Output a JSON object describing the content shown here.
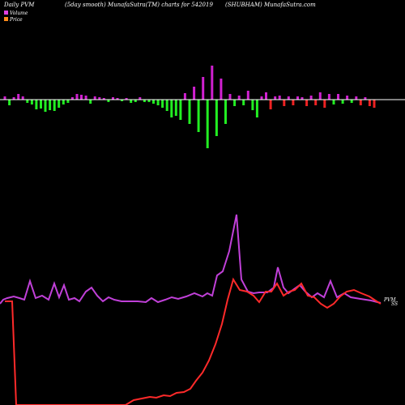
{
  "header": {
    "left": "Daily PVM",
    "center": "(5day smooth) MunafaSutra(TM) charts for 542019",
    "right": "(SHUBHAM) MunafaSutra.com"
  },
  "legend": {
    "volume_label": "Volume",
    "price_label": "Price",
    "volume_color": "#e040e0",
    "price_color": "#ff8c1a"
  },
  "end_labels": {
    "volume": "PVM",
    "price": "SS"
  },
  "colors": {
    "background": "#000000",
    "positive_bar": "#d020d0",
    "negative_bar": "#22ee22",
    "red_bar": "#ee2222",
    "volume_line": "#c040d8",
    "price_line": "#ff2a2a",
    "baseline": "#ffffff"
  },
  "chart_data": {
    "type": "bar+line",
    "bars": [
      {
        "v": 4,
        "c": "pos"
      },
      {
        "v": -7,
        "c": "neg"
      },
      {
        "v": 3,
        "c": "pos"
      },
      {
        "v": 7,
        "c": "pos"
      },
      {
        "v": 4,
        "c": "pos"
      },
      {
        "v": -4,
        "c": "neg"
      },
      {
        "v": -6,
        "c": "neg"
      },
      {
        "v": -12,
        "c": "neg"
      },
      {
        "v": -11,
        "c": "neg"
      },
      {
        "v": -15,
        "c": "neg"
      },
      {
        "v": -13,
        "c": "neg"
      },
      {
        "v": -14,
        "c": "neg"
      },
      {
        "v": -10,
        "c": "neg"
      },
      {
        "v": -6,
        "c": "neg"
      },
      {
        "v": -4,
        "c": "neg"
      },
      {
        "v": 3,
        "c": "pos"
      },
      {
        "v": 7,
        "c": "pos"
      },
      {
        "v": 6,
        "c": "pos"
      },
      {
        "v": 5,
        "c": "pos"
      },
      {
        "v": -5,
        "c": "neg"
      },
      {
        "v": 4,
        "c": "pos"
      },
      {
        "v": 3,
        "c": "pos"
      },
      {
        "v": 2,
        "c": "pos"
      },
      {
        "v": -3,
        "c": "neg"
      },
      {
        "v": 3,
        "c": "pos"
      },
      {
        "v": 2,
        "c": "pos"
      },
      {
        "v": -2,
        "c": "neg"
      },
      {
        "v": 2,
        "c": "pos"
      },
      {
        "v": -4,
        "c": "neg"
      },
      {
        "v": -3,
        "c": "neg"
      },
      {
        "v": 3,
        "c": "pos"
      },
      {
        "v": -3,
        "c": "neg"
      },
      {
        "v": -3,
        "c": "neg"
      },
      {
        "v": -5,
        "c": "neg"
      },
      {
        "v": -7,
        "c": "neg"
      },
      {
        "v": -10,
        "c": "neg"
      },
      {
        "v": -14,
        "c": "neg"
      },
      {
        "v": -22,
        "c": "neg"
      },
      {
        "v": -20,
        "c": "neg"
      },
      {
        "v": -25,
        "c": "neg"
      },
      {
        "v": 8,
        "c": "pos"
      },
      {
        "v": -30,
        "c": "neg"
      },
      {
        "v": 16,
        "c": "pos"
      },
      {
        "v": -40,
        "c": "neg"
      },
      {
        "v": 28,
        "c": "pos"
      },
      {
        "v": -60,
        "c": "neg"
      },
      {
        "v": 42,
        "c": "pos"
      },
      {
        "v": -45,
        "c": "neg"
      },
      {
        "v": 26,
        "c": "pos"
      },
      {
        "v": -30,
        "c": "neg"
      },
      {
        "v": 7,
        "c": "pos"
      },
      {
        "v": -8,
        "c": "neg"
      },
      {
        "v": 5,
        "c": "pos"
      },
      {
        "v": -7,
        "c": "neg"
      },
      {
        "v": 11,
        "c": "pos"
      },
      {
        "v": -13,
        "c": "neg"
      },
      {
        "v": -22,
        "c": "neg"
      },
      {
        "v": 4,
        "c": "pos"
      },
      {
        "v": 9,
        "c": "pos"
      },
      {
        "v": -12,
        "c": "red"
      },
      {
        "v": 4,
        "c": "pos"
      },
      {
        "v": 5,
        "c": "pos"
      },
      {
        "v": -8,
        "c": "red"
      },
      {
        "v": 4,
        "c": "pos"
      },
      {
        "v": -7,
        "c": "red"
      },
      {
        "v": 4,
        "c": "pos"
      },
      {
        "v": 3,
        "c": "pos"
      },
      {
        "v": -8,
        "c": "red"
      },
      {
        "v": 5,
        "c": "pos"
      },
      {
        "v": -7,
        "c": "red"
      },
      {
        "v": 9,
        "c": "pos"
      },
      {
        "v": -10,
        "c": "red"
      },
      {
        "v": 7,
        "c": "pos"
      },
      {
        "v": -6,
        "c": "neg"
      },
      {
        "v": 7,
        "c": "pos"
      },
      {
        "v": -5,
        "c": "neg"
      },
      {
        "v": 5,
        "c": "pos"
      },
      {
        "v": -4,
        "c": "neg"
      },
      {
        "v": 4,
        "c": "pos"
      },
      {
        "v": -7,
        "c": "red"
      },
      {
        "v": 3,
        "c": "pos"
      },
      {
        "v": -8,
        "c": "red"
      },
      {
        "v": -10,
        "c": "red"
      }
    ],
    "volume_line": [
      [
        0,
        375
      ],
      [
        4,
        370
      ],
      [
        9,
        368
      ],
      [
        17,
        366
      ],
      [
        24,
        368
      ],
      [
        30,
        370
      ],
      [
        37,
        347
      ],
      [
        44,
        368
      ],
      [
        52,
        365
      ],
      [
        60,
        370
      ],
      [
        67,
        350
      ],
      [
        73,
        367
      ],
      [
        79,
        352
      ],
      [
        85,
        370
      ],
      [
        92,
        368
      ],
      [
        98,
        372
      ],
      [
        106,
        360
      ],
      [
        113,
        355
      ],
      [
        120,
        365
      ],
      [
        127,
        372
      ],
      [
        134,
        367
      ],
      [
        141,
        370
      ],
      [
        150,
        372
      ],
      [
        160,
        372
      ],
      [
        170,
        372
      ],
      [
        180,
        373
      ],
      [
        187,
        368
      ],
      [
        195,
        373
      ],
      [
        204,
        370
      ],
      [
        212,
        367
      ],
      [
        220,
        369
      ],
      [
        230,
        366
      ],
      [
        240,
        362
      ],
      [
        250,
        366
      ],
      [
        256,
        362
      ],
      [
        262,
        365
      ],
      [
        268,
        340
      ],
      [
        275,
        335
      ],
      [
        283,
        310
      ],
      [
        292,
        265
      ],
      [
        298,
        345
      ],
      [
        306,
        360
      ],
      [
        313,
        362
      ],
      [
        320,
        361
      ],
      [
        330,
        361
      ],
      [
        338,
        355
      ],
      [
        343,
        330
      ],
      [
        350,
        355
      ],
      [
        356,
        362
      ],
      [
        363,
        357
      ],
      [
        370,
        352
      ],
      [
        377,
        360
      ],
      [
        385,
        367
      ],
      [
        392,
        362
      ],
      [
        400,
        367
      ],
      [
        408,
        347
      ],
      [
        416,
        367
      ],
      [
        425,
        362
      ],
      [
        433,
        367
      ],
      [
        445,
        369
      ],
      [
        458,
        371
      ],
      [
        470,
        374
      ]
    ],
    "price_line": [
      [
        6,
        372
      ],
      [
        10,
        372
      ],
      [
        15,
        372
      ],
      [
        20,
        500
      ],
      [
        155,
        500
      ],
      [
        165,
        494
      ],
      [
        175,
        492
      ],
      [
        185,
        490
      ],
      [
        193,
        491
      ],
      [
        202,
        488
      ],
      [
        210,
        489
      ],
      [
        218,
        485
      ],
      [
        227,
        484
      ],
      [
        235,
        480
      ],
      [
        242,
        470
      ],
      [
        250,
        460
      ],
      [
        258,
        445
      ],
      [
        266,
        425
      ],
      [
        274,
        400
      ],
      [
        281,
        370
      ],
      [
        288,
        345
      ],
      [
        296,
        358
      ],
      [
        305,
        360
      ],
      [
        313,
        365
      ],
      [
        320,
        373
      ],
      [
        328,
        360
      ],
      [
        335,
        360
      ],
      [
        342,
        350
      ],
      [
        350,
        365
      ],
      [
        357,
        360
      ],
      [
        364,
        358
      ],
      [
        372,
        350
      ],
      [
        380,
        365
      ],
      [
        388,
        367
      ],
      [
        396,
        375
      ],
      [
        404,
        380
      ],
      [
        412,
        375
      ],
      [
        420,
        366
      ],
      [
        428,
        360
      ],
      [
        437,
        358
      ],
      [
        446,
        362
      ],
      [
        456,
        366
      ],
      [
        465,
        372
      ],
      [
        470,
        375
      ]
    ]
  }
}
